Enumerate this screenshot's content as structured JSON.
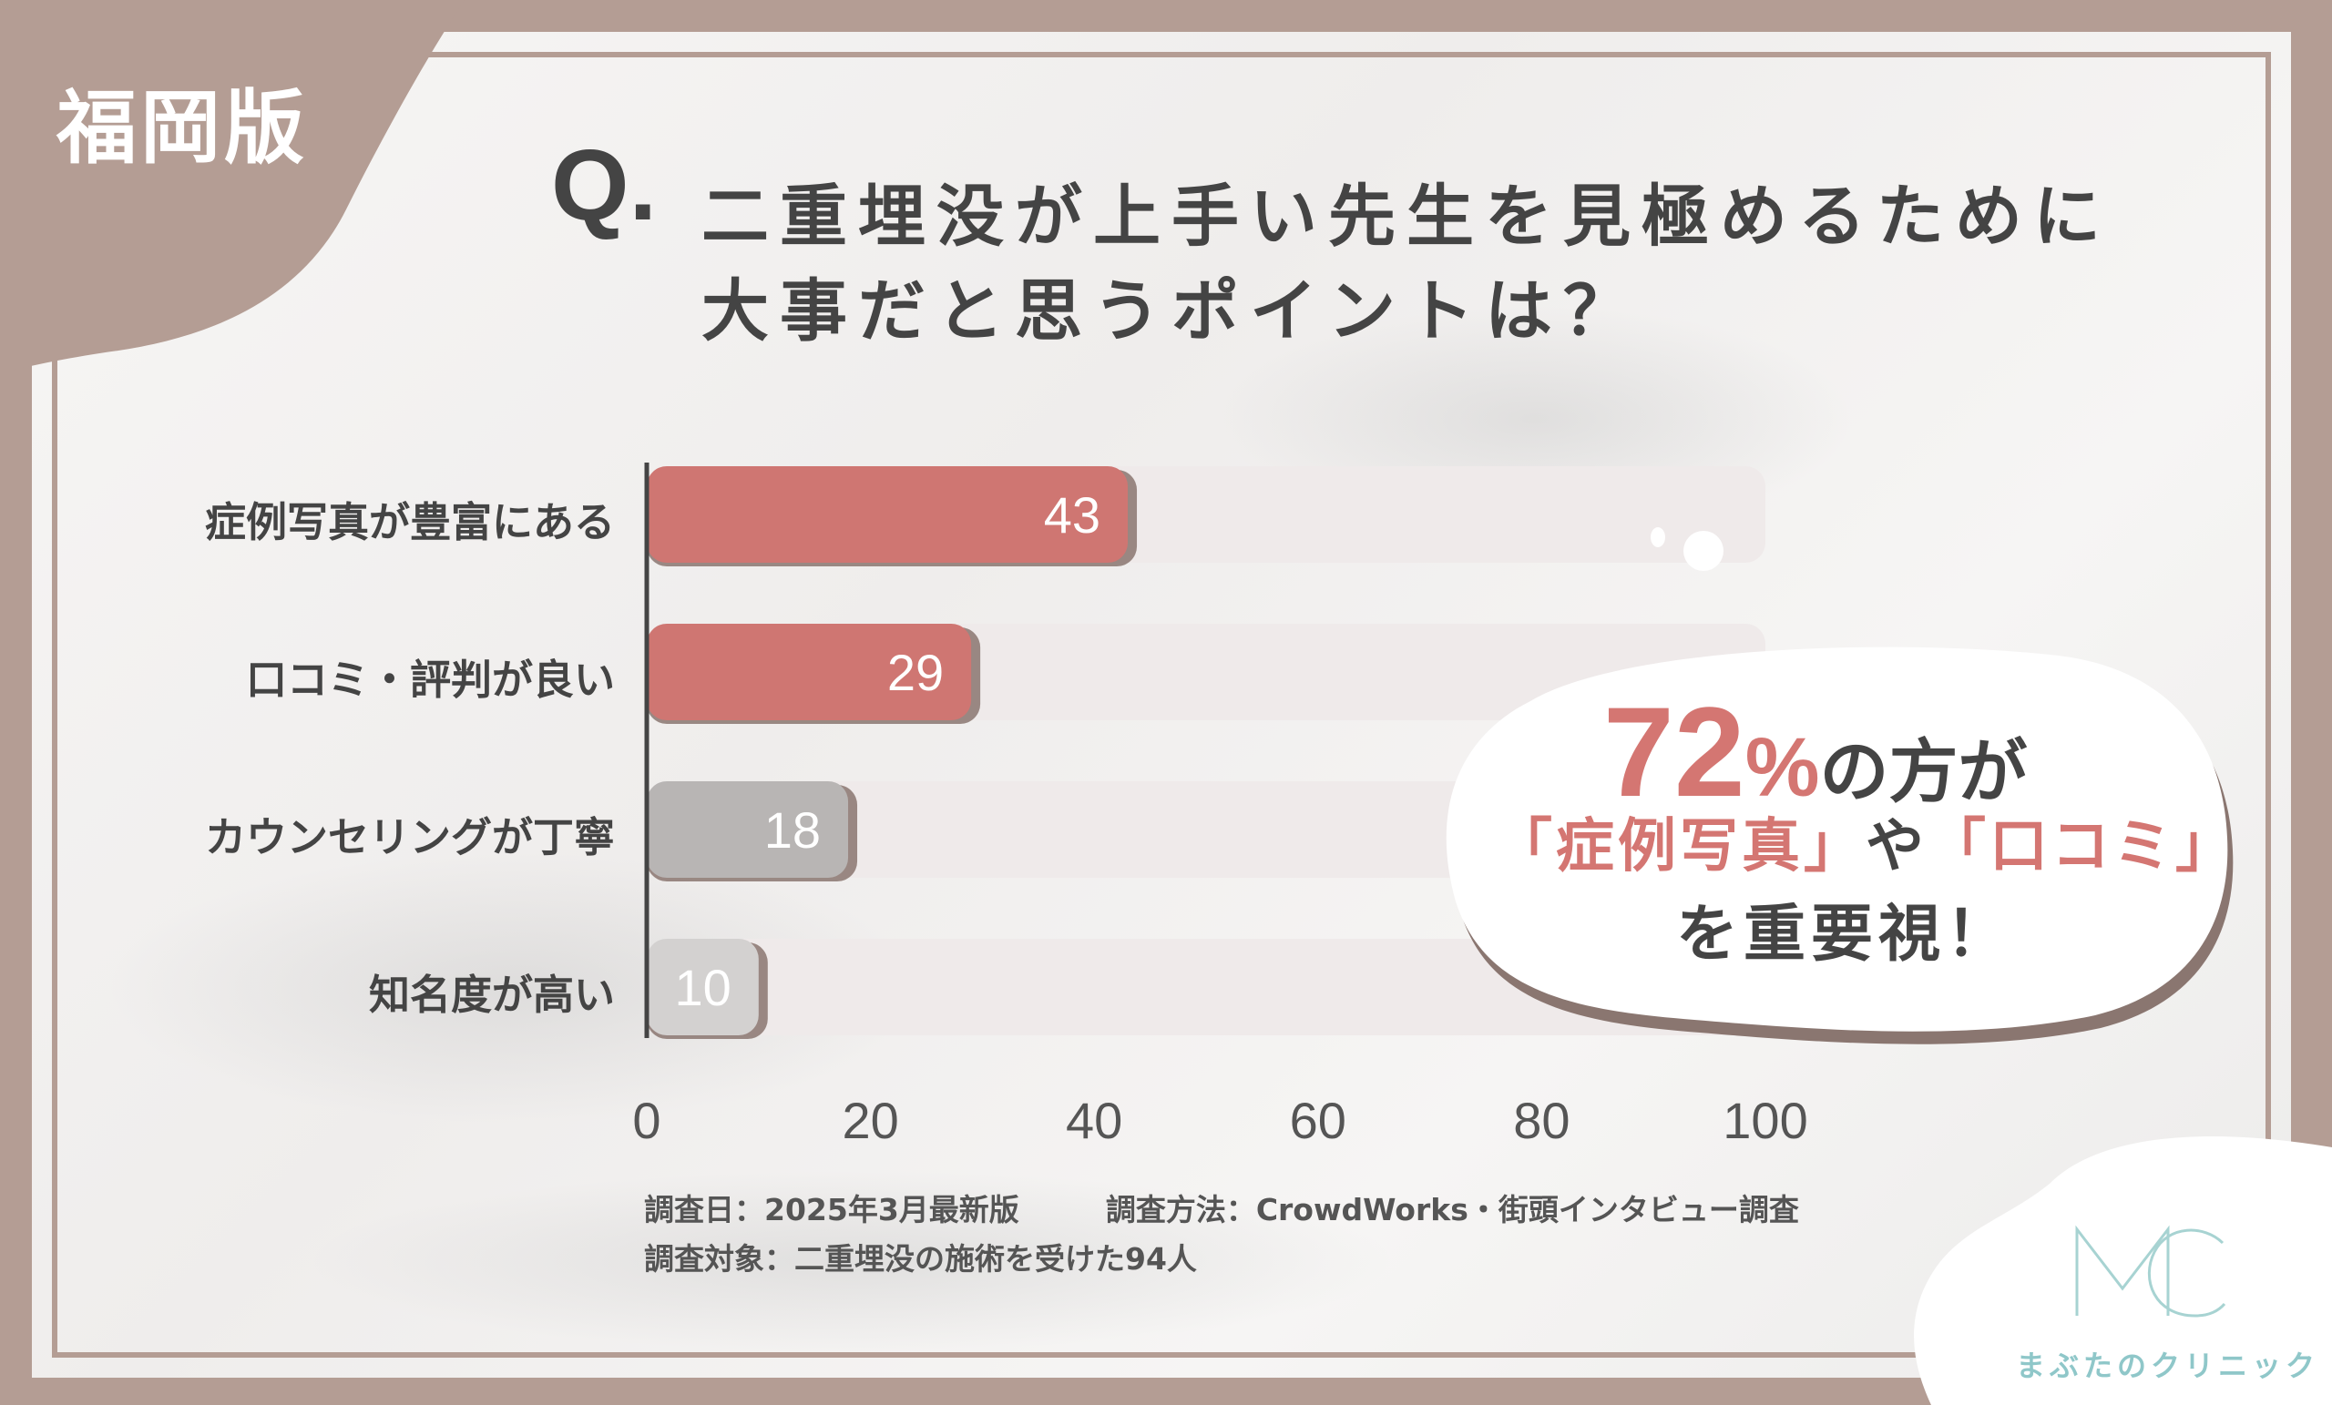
{
  "region_tag": "福岡版",
  "question": {
    "mark": "Q.",
    "line1": "二重埋没が上手い先生を見極めるために",
    "line2": "大事だと思うポイントは？"
  },
  "chart_data": {
    "type": "bar",
    "orientation": "horizontal",
    "categories": [
      "症例写真が豊富にある",
      "口コミ・評判が良い",
      "カウンセリングが丁寧",
      "知名度が高い"
    ],
    "values": [
      43,
      29,
      18,
      10
    ],
    "value_labels": [
      "43",
      "29",
      "18",
      "10"
    ],
    "xlim": [
      0,
      100
    ],
    "x_ticks": [
      0,
      20,
      40,
      60,
      80,
      100
    ],
    "x_tick_labels": [
      "0",
      "20",
      "40",
      "60",
      "80",
      "100"
    ],
    "grid": false,
    "bar_colors": [
      "#cf7672",
      "#cf7672",
      "#b8b5b4",
      "#d3d1d0"
    ],
    "track_color": "#efeaea"
  },
  "callout": {
    "big": "72",
    "pct": "%",
    "rest": "の方が",
    "line2_q1": "「症例写真」",
    "line2_mid": "や",
    "line2_q2": "「口コミ」",
    "line3": "を重要視！"
  },
  "notes": {
    "date": "調査日：2025年3月最新版",
    "method": "調査方法：CrowdWorks・街頭インタビュー調査",
    "target": "調査対象：二重埋没の施術を受けた94人"
  },
  "logo": {
    "mark": "MC",
    "name": "まぶたのクリニック"
  },
  "colors": {
    "frame": "#b49d94",
    "accent": "#d47672",
    "logo": "#8fc7c9"
  }
}
